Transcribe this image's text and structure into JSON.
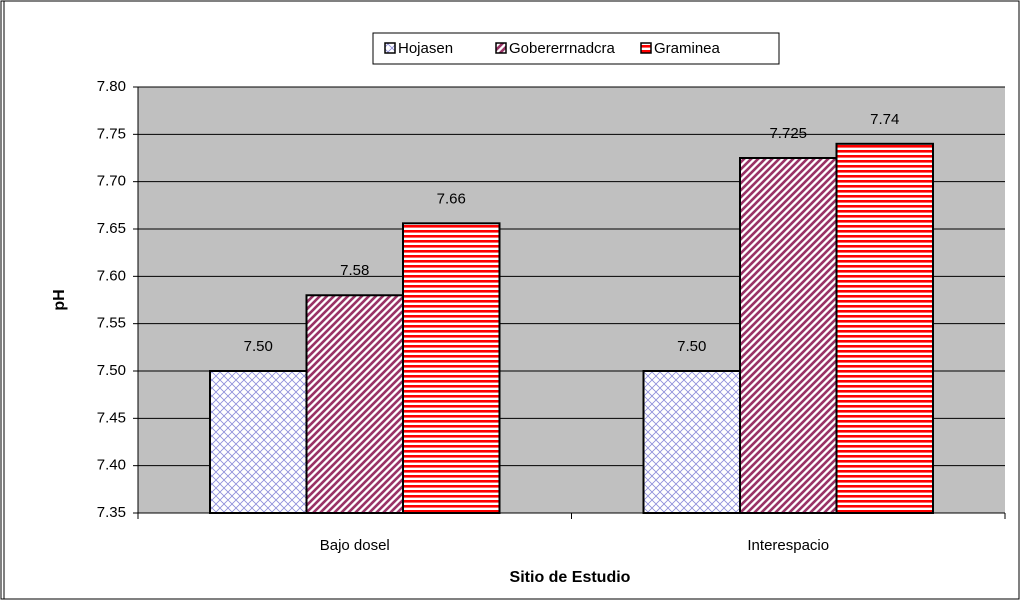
{
  "chart_data": {
    "type": "bar",
    "categories": [
      "Bajo dosel",
      "Interespacio"
    ],
    "series": [
      {
        "name": "Hojasen",
        "color": "#8c8cd9",
        "pattern": "crosshatch",
        "values": [
          7.5,
          7.5
        ],
        "value_labels": [
          "7.50",
          "7.50"
        ]
      },
      {
        "name": "Gobererrnadcra",
        "color": "#993366",
        "pattern": "diagonal",
        "values": [
          7.58,
          7.725
        ],
        "value_labels": [
          "7.58",
          "7.725"
        ]
      },
      {
        "name": "Graminea",
        "color": "#ff0000",
        "pattern": "horizontal",
        "values": [
          7.656,
          7.74
        ],
        "value_labels": [
          "7.66",
          "7.74"
        ]
      }
    ],
    "xlabel": "Sitio de Estudio",
    "ylabel": "pH",
    "ylim": [
      7.35,
      7.8
    ],
    "yticks": [
      {
        "value": 7.35,
        "label": "7.35"
      },
      {
        "value": 7.4,
        "label": "7.40"
      },
      {
        "value": 7.45,
        "label": "7.45"
      },
      {
        "value": 7.5,
        "label": "7.50"
      },
      {
        "value": 7.55,
        "label": "7.55"
      },
      {
        "value": 7.6,
        "label": "7.60"
      },
      {
        "value": 7.65,
        "label": "7.65"
      },
      {
        "value": 7.7,
        "label": "7.70"
      },
      {
        "value": 7.75,
        "label": "7.75"
      },
      {
        "value": 7.8,
        "label": "7.80"
      }
    ],
    "grid": true,
    "legend": "top"
  }
}
